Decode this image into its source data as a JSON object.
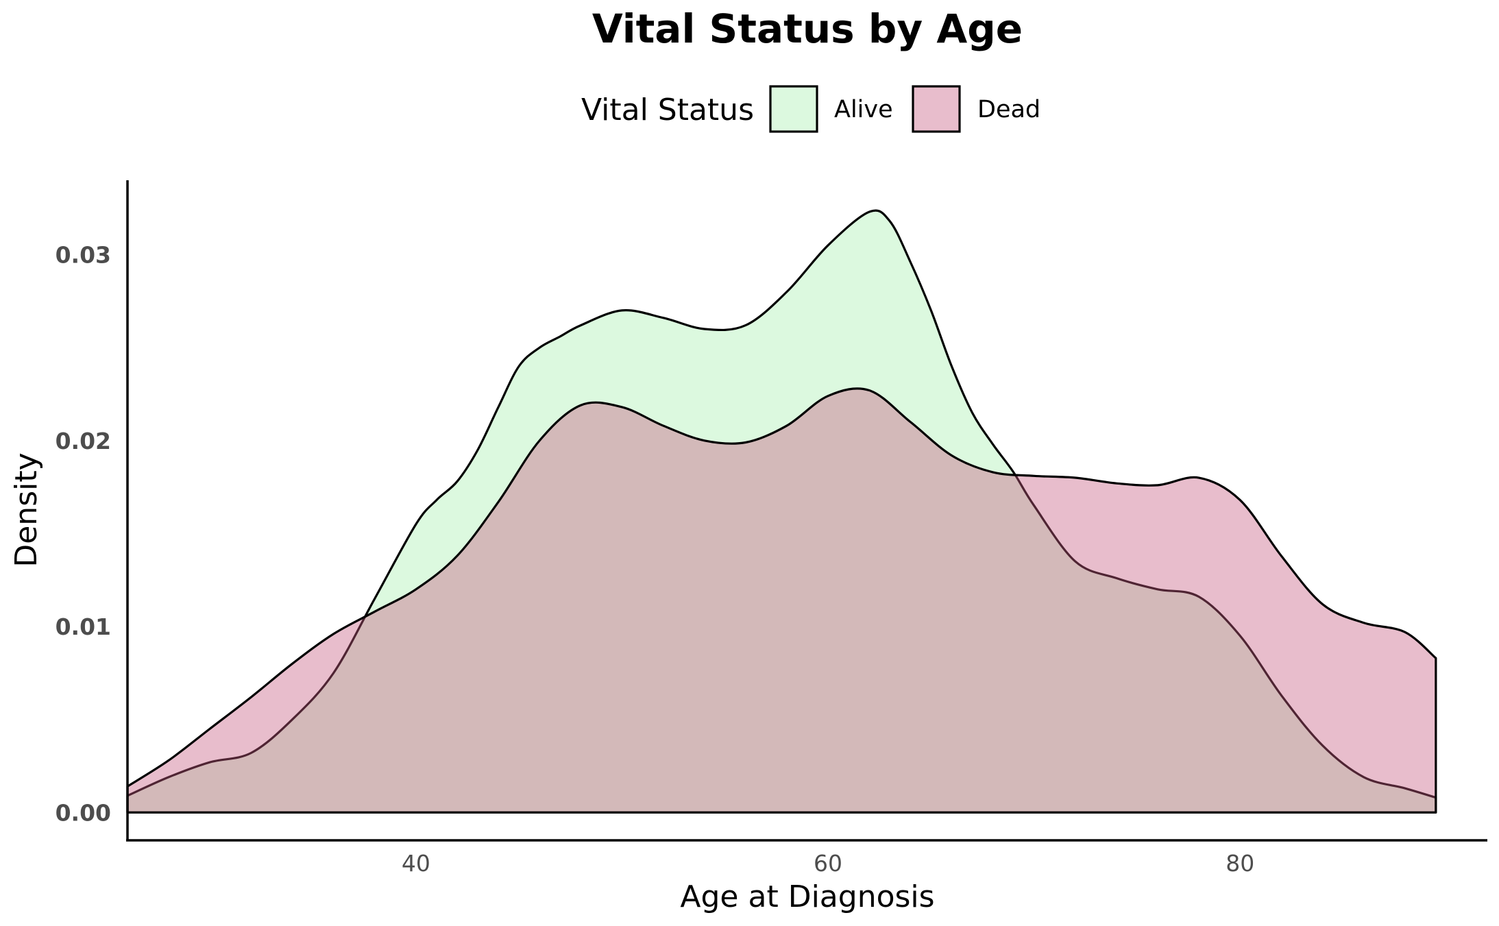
{
  "chart_data": {
    "type": "area",
    "title": "Vital Status by Age",
    "xlabel": "Age at Diagnosis",
    "ylabel": "Density",
    "xlim": [
      26,
      92
    ],
    "ylim": [
      -0.0015,
      0.034
    ],
    "x_ticks": [
      40,
      60,
      80
    ],
    "x_tick_labels": [
      "40",
      "60",
      "80"
    ],
    "y_ticks": [
      0.0,
      0.01,
      0.02,
      0.03
    ],
    "y_tick_labels": [
      "0.00",
      "0.01",
      "0.02",
      "0.03"
    ],
    "grid": false,
    "legend": {
      "title": "Vital Status",
      "position": "top",
      "entries": [
        "Alive",
        "Dead"
      ]
    },
    "fill_opacity": 0.4,
    "series": [
      {
        "name": "Alive",
        "color": "#a8f0b0",
        "x": [
          26.0,
          28.0,
          30.0,
          32.0,
          34.0,
          36.0,
          38.0,
          40.0,
          41.0,
          42.0,
          43.0,
          44.0,
          45.0,
          46.0,
          47.0,
          48.0,
          50.0,
          52.0,
          54.0,
          56.0,
          58.0,
          60.0,
          62.0,
          63.0,
          64.0,
          65.0,
          66.0,
          67.0,
          68.0,
          69.0,
          70.0,
          72.0,
          74.0,
          76.0,
          78.0,
          80.0,
          82.0,
          84.0,
          86.0,
          88.0,
          89.5
        ],
        "values": [
          0.0009,
          0.0019,
          0.0027,
          0.0032,
          0.005,
          0.0075,
          0.0115,
          0.0155,
          0.0168,
          0.0178,
          0.0195,
          0.0218,
          0.024,
          0.025,
          0.0256,
          0.0262,
          0.027,
          0.0266,
          0.026,
          0.0262,
          0.028,
          0.0305,
          0.0323,
          0.0318,
          0.0296,
          0.027,
          0.024,
          0.0215,
          0.0198,
          0.0183,
          0.0165,
          0.0135,
          0.0126,
          0.012,
          0.0116,
          0.0095,
          0.0063,
          0.0036,
          0.0019,
          0.0013,
          0.0008
        ]
      },
      {
        "name": "Dead",
        "color": "#c55a80",
        "x": [
          26.0,
          28.0,
          30.0,
          32.0,
          34.0,
          36.0,
          38.0,
          40.0,
          42.0,
          44.0,
          46.0,
          48.0,
          50.0,
          52.0,
          54.0,
          56.0,
          58.0,
          60.0,
          62.0,
          64.0,
          66.0,
          68.0,
          70.0,
          72.0,
          74.0,
          76.0,
          78.0,
          80.0,
          82.0,
          84.0,
          86.0,
          88.0,
          89.5
        ],
        "values": [
          0.0014,
          0.0028,
          0.0045,
          0.0062,
          0.008,
          0.0096,
          0.0108,
          0.012,
          0.0138,
          0.0167,
          0.02,
          0.0219,
          0.0218,
          0.0208,
          0.02,
          0.0199,
          0.0208,
          0.0224,
          0.0227,
          0.021,
          0.0192,
          0.0183,
          0.0181,
          0.018,
          0.0177,
          0.0176,
          0.018,
          0.0168,
          0.0138,
          0.0112,
          0.0102,
          0.0097,
          0.0083
        ]
      }
    ]
  }
}
